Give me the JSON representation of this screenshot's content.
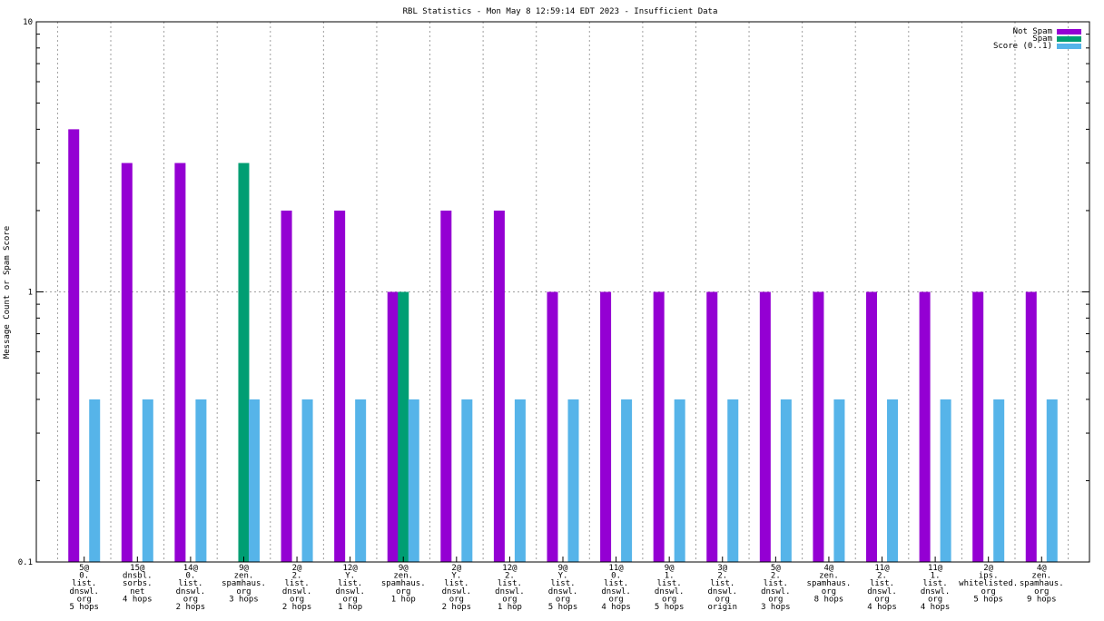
{
  "chart_data": {
    "type": "bar",
    "title": "RBL Statistics - Mon May  8 12:59:14 EDT 2023 - Insufficient Data",
    "ylabel": "Message Count or Spam Score",
    "xlabel": "",
    "yscale": "log",
    "ylim": [
      0.1,
      10
    ],
    "yticks": [
      "0.1",
      "1",
      "10"
    ],
    "grid": true,
    "legend_position": "top-right",
    "categories": [
      [
        "5@",
        "0.",
        "list.",
        "dnswl.",
        "org",
        "5 hops"
      ],
      [
        "15@",
        "dnsbl.",
        "sorbs.",
        "net",
        "4 hops"
      ],
      [
        "14@",
        "0.",
        "list.",
        "dnswl.",
        "org",
        "2 hops"
      ],
      [
        "9@",
        "zen.",
        "spamhaus.",
        "org",
        "3 hops"
      ],
      [
        "2@",
        "2.",
        "list.",
        "dnswl.",
        "org",
        "2 hops"
      ],
      [
        "12@",
        "Y.",
        "list.",
        "dnswl.",
        "org",
        "1 hop"
      ],
      [
        "9@",
        "zen.",
        "spamhaus.",
        "org",
        "1 hop"
      ],
      [
        "2@",
        "Y.",
        "list.",
        "dnswl.",
        "org",
        "2 hops"
      ],
      [
        "12@",
        "2.",
        "list.",
        "dnswl.",
        "org",
        "1 hop"
      ],
      [
        "9@",
        "Y.",
        "list.",
        "dnswl.",
        "org",
        "5 hops"
      ],
      [
        "11@",
        "0.",
        "list.",
        "dnswl.",
        "org",
        "4 hops"
      ],
      [
        "9@",
        "1.",
        "list.",
        "dnswl.",
        "org",
        "5 hops"
      ],
      [
        "3@",
        "2.",
        "list.",
        "dnswl.",
        "org",
        "origin"
      ],
      [
        "5@",
        "2.",
        "list.",
        "dnswl.",
        "org",
        "3 hops"
      ],
      [
        "4@",
        "zen.",
        "spamhaus.",
        "org",
        "8 hops"
      ],
      [
        "11@",
        "2.",
        "list.",
        "dnswl.",
        "org",
        "4 hops"
      ],
      [
        "11@",
        "1.",
        "list.",
        "dnswl.",
        "org",
        "4 hops"
      ],
      [
        "2@",
        "ips.",
        "whitelisted.",
        "org",
        "5 hops"
      ],
      [
        "4@",
        "zen.",
        "spamhaus.",
        "org",
        "9 hops"
      ]
    ],
    "series": [
      {
        "name": "Not Spam",
        "color": "#9400d3",
        "values": [
          4,
          3,
          3,
          null,
          2,
          2,
          1,
          2,
          2,
          1,
          1,
          1,
          1,
          1,
          1,
          1,
          1,
          1,
          1
        ]
      },
      {
        "name": "Spam",
        "color": "#009e73",
        "values": [
          null,
          null,
          null,
          3,
          null,
          null,
          1,
          null,
          null,
          null,
          null,
          null,
          null,
          null,
          null,
          null,
          null,
          null,
          null
        ]
      },
      {
        "name": "Score (0..1)",
        "color": "#56b4e9",
        "values": [
          0.4,
          0.4,
          0.4,
          0.4,
          0.4,
          0.4,
          0.4,
          0.4,
          0.4,
          0.4,
          0.4,
          0.4,
          0.4,
          0.4,
          0.4,
          0.4,
          0.4,
          0.4,
          0.4
        ]
      }
    ]
  }
}
